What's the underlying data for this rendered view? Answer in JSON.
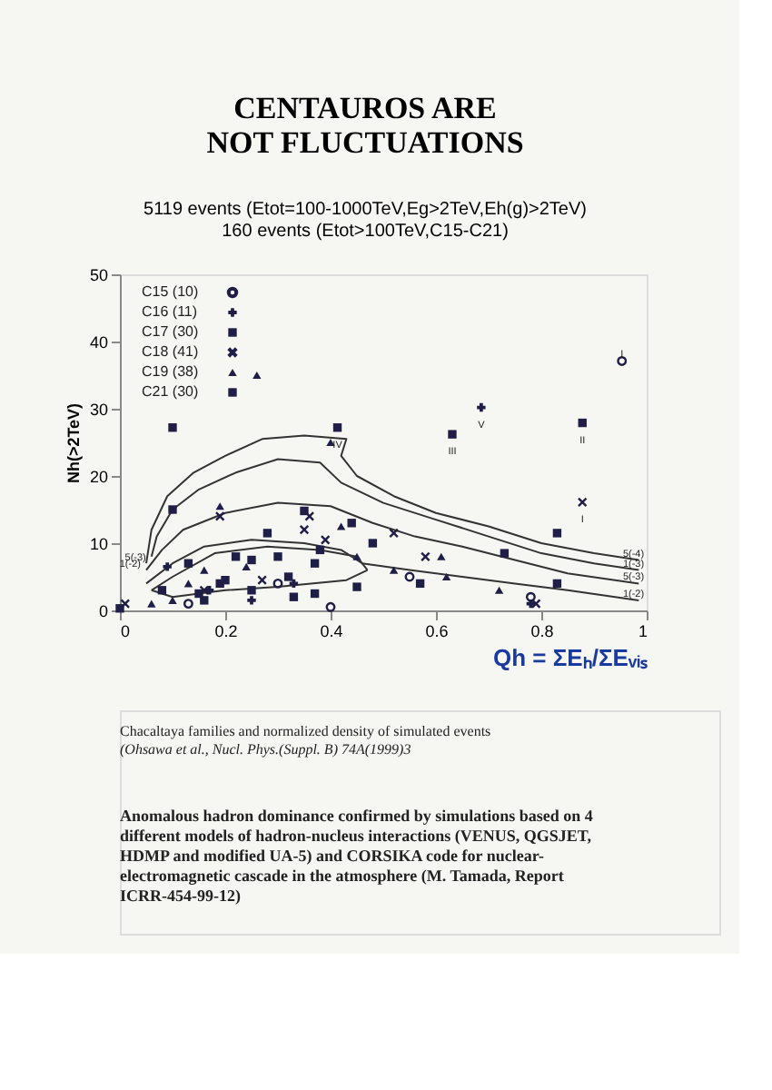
{
  "chart_data": {
    "type": "scatter",
    "title": "CENTAUROS ARE NOT FLUCTUATIONS",
    "subtitle": "5119 events (Etot=100-1000TeV,Eg>2TeV,Eh(g)>2TeV)\n160 events (Etot>100TeV,C15-C21)",
    "xlabel": "Qh = ΣEₕ/ΣEᵥᵢₛ",
    "ylabel": "Nh(>2TeV)",
    "xlim": [
      0,
      1
    ],
    "xticks": [
      0,
      0.2,
      0.4,
      0.6,
      0.8,
      1
    ],
    "ylim": [
      0,
      50
    ],
    "yticks": [
      0,
      10,
      20,
      30,
      40,
      50
    ],
    "grid": false,
    "legend": "top left",
    "series": [
      {
        "type": "line",
        "color": "#333333",
        "marker": "none",
        "x": [
          0.05,
          0.06,
          0.09,
          0.14,
          0.2,
          0.27,
          0.35,
          0.43,
          0.42,
          0.45,
          0.52,
          0.6,
          0.7,
          0.8,
          0.9,
          0.985
        ],
        "values": [
          7,
          12,
          17,
          20.5,
          23,
          25.5,
          26,
          25.5,
          23,
          20,
          17,
          14.5,
          12.5,
          10,
          8.5,
          7.5
        ]
      },
      {
        "type": "line",
        "color": "#333333",
        "marker": "none",
        "x": [
          0.06,
          0.07,
          0.1,
          0.15,
          0.22,
          0.3,
          0.38,
          0.42,
          0.5,
          0.6,
          0.7,
          0.8,
          0.9,
          0.985
        ],
        "values": [
          8,
          11,
          15,
          18,
          20.5,
          22.5,
          22,
          19,
          16,
          13.5,
          11,
          8.5,
          7,
          6
        ]
      },
      {
        "type": "line",
        "color": "#333333",
        "marker": "none",
        "x": [
          0.05,
          0.08,
          0.12,
          0.2,
          0.3,
          0.4,
          0.48,
          0.56,
          0.65,
          0.75,
          0.85,
          0.985
        ],
        "values": [
          6,
          9,
          12,
          14.5,
          16,
          15.5,
          13,
          11,
          9.5,
          7.5,
          5.5,
          4
        ]
      },
      {
        "type": "line",
        "color": "#333333",
        "marker": "none",
        "x": [
          0.05,
          0.1,
          0.16,
          0.25,
          0.35,
          0.42,
          0.46,
          0.55,
          0.65,
          0.75,
          0.85,
          0.985
        ],
        "values": [
          4,
          7,
          9.5,
          10.5,
          10,
          9,
          7,
          6,
          5,
          4,
          3,
          1.5
        ]
      },
      {
        "type": "line",
        "color": "#333333",
        "marker": "none",
        "x": [
          0.06,
          0.1,
          0.18,
          0.28,
          0.38,
          0.45,
          0.47
        ],
        "values": [
          3,
          5,
          8.5,
          9.5,
          9,
          8,
          6
        ]
      },
      {
        "type": "line",
        "color": "#333333",
        "marker": "none",
        "x": [
          0.06,
          0.1,
          0.2,
          0.3,
          0.43,
          0.47
        ],
        "values": [
          3,
          2,
          3,
          3.5,
          4.5,
          6
        ]
      },
      {
        "name": "C15 (10)",
        "color": "#1e1e46",
        "marker": "circle",
        "x": [
          0.953,
          0.4,
          0.78,
          0.3,
          0.13,
          0.55
        ],
        "values": [
          37.1,
          0.5,
          2,
          4,
          1,
          5
        ]
      },
      {
        "name": "C16 (11)",
        "color": "#1e1e46",
        "marker": "plus",
        "x": [
          0.686,
          0.33,
          0.09,
          0.17,
          0.25,
          0.78
        ],
        "values": [
          30.2,
          4,
          6.5,
          3,
          1.5,
          1
        ]
      },
      {
        "name": "C17 (30)",
        "color": "#1e1e46",
        "marker": "square",
        "x": [
          0.1,
          0.1,
          0.3,
          0.13,
          0.25,
          0.33,
          0.16,
          0.19,
          0.08,
          0.37
        ],
        "values": [
          27.2,
          15,
          8,
          7,
          7.5,
          2,
          1.5,
          4,
          3,
          2.5
        ]
      },
      {
        "name": "C18 (41)",
        "color": "#1e1e46",
        "marker": "cross",
        "x": [
          0.878,
          0.19,
          0.36,
          0.58,
          0.27,
          0.16,
          0.39,
          0.52,
          0.35,
          0.79,
          0.01
        ],
        "values": [
          16.1,
          14,
          14,
          8,
          4.5,
          3,
          10.5,
          11.5,
          12,
          1,
          1
        ]
      },
      {
        "name": "C19 (38)",
        "color": "#1e1e46",
        "marker": "triangle",
        "x": [
          0.26,
          0.4,
          0.19,
          0.42,
          0.61,
          0.72,
          0.45,
          0.16,
          0.13,
          0.06,
          0.1,
          0.24,
          0.52,
          0.62
        ],
        "values": [
          35,
          25,
          15.5,
          12.5,
          8,
          3,
          8,
          6,
          4,
          1,
          1.5,
          6.5,
          6,
          5
        ]
      },
      {
        "name": "C21 (30)",
        "color": "#1e1e46",
        "marker": "square",
        "x": [
          0.413,
          0.631,
          0.878,
          0.35,
          0.44,
          0.28,
          0.38,
          0.83,
          0.73,
          0.83,
          0.57,
          0.45,
          0.22,
          0.2,
          0.25,
          0.32,
          0.37,
          0.0,
          0.15,
          0.48
        ],
        "values": [
          27.2,
          26.2,
          27.9,
          14.8,
          13,
          11.5,
          9,
          11.5,
          8.5,
          4,
          4,
          3.5,
          8,
          4.5,
          3,
          5,
          7,
          0.3,
          2.5,
          10
        ]
      }
    ],
    "annotations": [
      {
        "text": "I",
        "x": 0.953,
        "y": 37.1
      },
      {
        "text": "V",
        "x": 0.686,
        "y": 30.2
      },
      {
        "text": "IV",
        "x": 0.413,
        "y": 27.2
      },
      {
        "text": "III",
        "x": 0.631,
        "y": 26.2
      },
      {
        "text": "II",
        "x": 0.878,
        "y": 27.9
      },
      {
        "text": "I",
        "x": 0.878,
        "y": 16.1
      },
      {
        "text": "5(-3)",
        "x": 0.06,
        "y": 8
      },
      {
        "text": "1(-2)",
        "x": 0.05,
        "y": 7
      },
      {
        "text": "5(-4)",
        "x": 0.975,
        "y": 7.5
      },
      {
        "text": "1(-3)",
        "x": 0.975,
        "y": 6
      },
      {
        "text": "5(-3)",
        "x": 0.975,
        "y": 4
      },
      {
        "text": "1(-2)",
        "x": 0.975,
        "y": 1.5
      },
      "Chacaltaya families and normalized density of simulated events",
      "(Ohsawa et al., Nucl. Phys.(Suppl. B) 74A(1999)3",
      "Anomalous hadron dominance confirmed by simulations based on 4 different models of hadron-nucleus interactions (VENUS, QGSJET, HDMP and modified UA-5) and CORSIKA code for nuclear-electromagnetic cascade in the atmosphere (M. Tamada, Report ICRR-454-99-12)"
    ]
  }
}
